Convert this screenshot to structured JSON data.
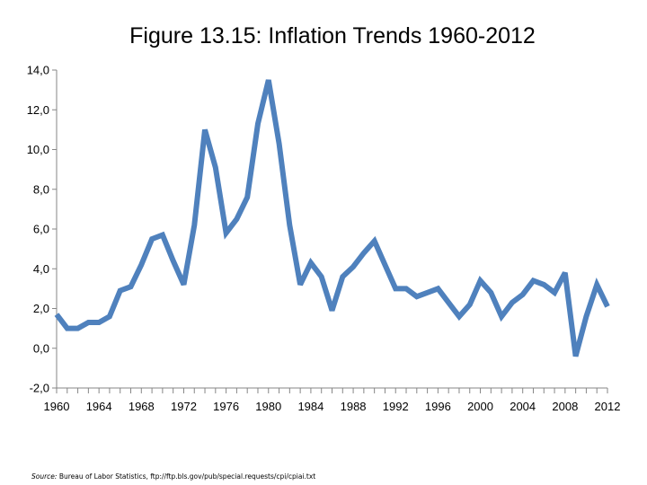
{
  "slide": {
    "source_label": "Source:",
    "source_text": "Bureau of Labor Statistics, ftp://ftp.bls.gov/pub/special.requests/cpi/cpiai.txt"
  },
  "chart_data": {
    "type": "line",
    "title": "Figure 13.15: Inflation Trends 1960-2012",
    "xlabel": "",
    "ylabel": "",
    "ylim": [
      -2,
      14
    ],
    "xlim": [
      1960,
      2012
    ],
    "grid": false,
    "y_ticks": [
      -2,
      0,
      2,
      4,
      6,
      8,
      10,
      12,
      14
    ],
    "y_tick_labels": [
      "-2,0",
      "0,0",
      "2,0",
      "4,0",
      "6,0",
      "8,0",
      "10,0",
      "12,0",
      "14,0"
    ],
    "x_tick_labels": [
      "1960",
      "1964",
      "1968",
      "1972",
      "1976",
      "1980",
      "1984",
      "1988",
      "1992",
      "1996",
      "2000",
      "2004",
      "2008",
      "2012"
    ],
    "line_color": "#4f81bd",
    "series": [
      {
        "x": [
          1960,
          1961,
          1962,
          1963,
          1964,
          1965,
          1966,
          1967,
          1968,
          1969,
          1970,
          1971,
          1972,
          1973,
          1974,
          1975,
          1976,
          1977,
          1978,
          1979,
          1980,
          1981,
          1982,
          1983,
          1984,
          1985,
          1986,
          1987,
          1988,
          1989,
          1990,
          1991,
          1992,
          1993,
          1994,
          1995,
          1996,
          1997,
          1998,
          1999,
          2000,
          2001,
          2002,
          2003,
          2004,
          2005,
          2006,
          2007,
          2008,
          2009,
          2010,
          2011,
          2012
        ],
        "values": [
          1.7,
          1.0,
          1.0,
          1.3,
          1.3,
          1.6,
          2.9,
          3.1,
          4.2,
          5.5,
          5.7,
          4.4,
          3.2,
          6.2,
          11.0,
          9.1,
          5.8,
          6.5,
          7.6,
          11.3,
          13.5,
          10.3,
          6.2,
          3.2,
          4.3,
          3.6,
          1.9,
          3.6,
          4.1,
          4.8,
          5.4,
          4.2,
          3.0,
          3.0,
          2.6,
          2.8,
          3.0,
          2.3,
          1.6,
          2.2,
          3.4,
          2.8,
          1.6,
          2.3,
          2.7,
          3.4,
          3.2,
          2.8,
          3.8,
          -0.4,
          1.6,
          3.2,
          2.1
        ]
      }
    ]
  }
}
